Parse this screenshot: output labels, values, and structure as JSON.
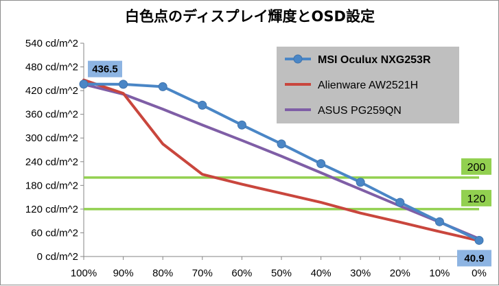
{
  "chart_data": {
    "type": "line",
    "title": "白色点のディスプレイ輝度とOSD設定",
    "xlabel": "",
    "ylabel": "",
    "categories": [
      "100%",
      "90%",
      "80%",
      "70%",
      "60%",
      "50%",
      "40%",
      "30%",
      "20%",
      "10%",
      "0%"
    ],
    "ylim": [
      0,
      540
    ],
    "yticks": [
      0,
      60,
      120,
      180,
      240,
      300,
      360,
      420,
      480,
      540
    ],
    "ytick_labels": [
      "0 cd/m^2",
      "60 cd/m^2",
      "120 cd/m^2",
      "180 cd/m^2",
      "240 cd/m^2",
      "300 cd/m^2",
      "360 cd/m^2",
      "420 cd/m^2",
      "480 cd/m^2",
      "540 cd/m^2"
    ],
    "grid": false,
    "legend_position": "top-right",
    "series": [
      {
        "name": "MSI Oculux NXG253R",
        "color": "#4a86c6",
        "markers": true,
        "bold_label": true,
        "values": [
          436.5,
          436,
          430,
          383,
          333,
          285,
          235,
          188,
          137,
          88,
          40.9
        ]
      },
      {
        "name": "Alienware AW2521H",
        "color": "#c9463d",
        "markers": false,
        "bold_label": false,
        "values": [
          447,
          413,
          285,
          208,
          183,
          160,
          137,
          110,
          87,
          63,
          40
        ]
      },
      {
        "name": "ASUS PG259QN",
        "color": "#7f5ea6",
        "markers": false,
        "bold_label": false,
        "values": [
          436,
          411,
          373,
          333,
          294,
          254,
          212,
          170,
          128,
          87,
          45
        ]
      }
    ],
    "reference_lines": [
      {
        "value": 200,
        "label": "200",
        "color": "#92d050"
      },
      {
        "value": 120,
        "label": "120",
        "color": "#92d050"
      }
    ],
    "callouts": [
      {
        "label": "436.5",
        "series": 0,
        "index": 0,
        "color": "#8db4e2"
      },
      {
        "label": "40.9",
        "series": 0,
        "index": 10,
        "color": "#8db4e2"
      }
    ],
    "legend_background": "#bfbfbf"
  }
}
